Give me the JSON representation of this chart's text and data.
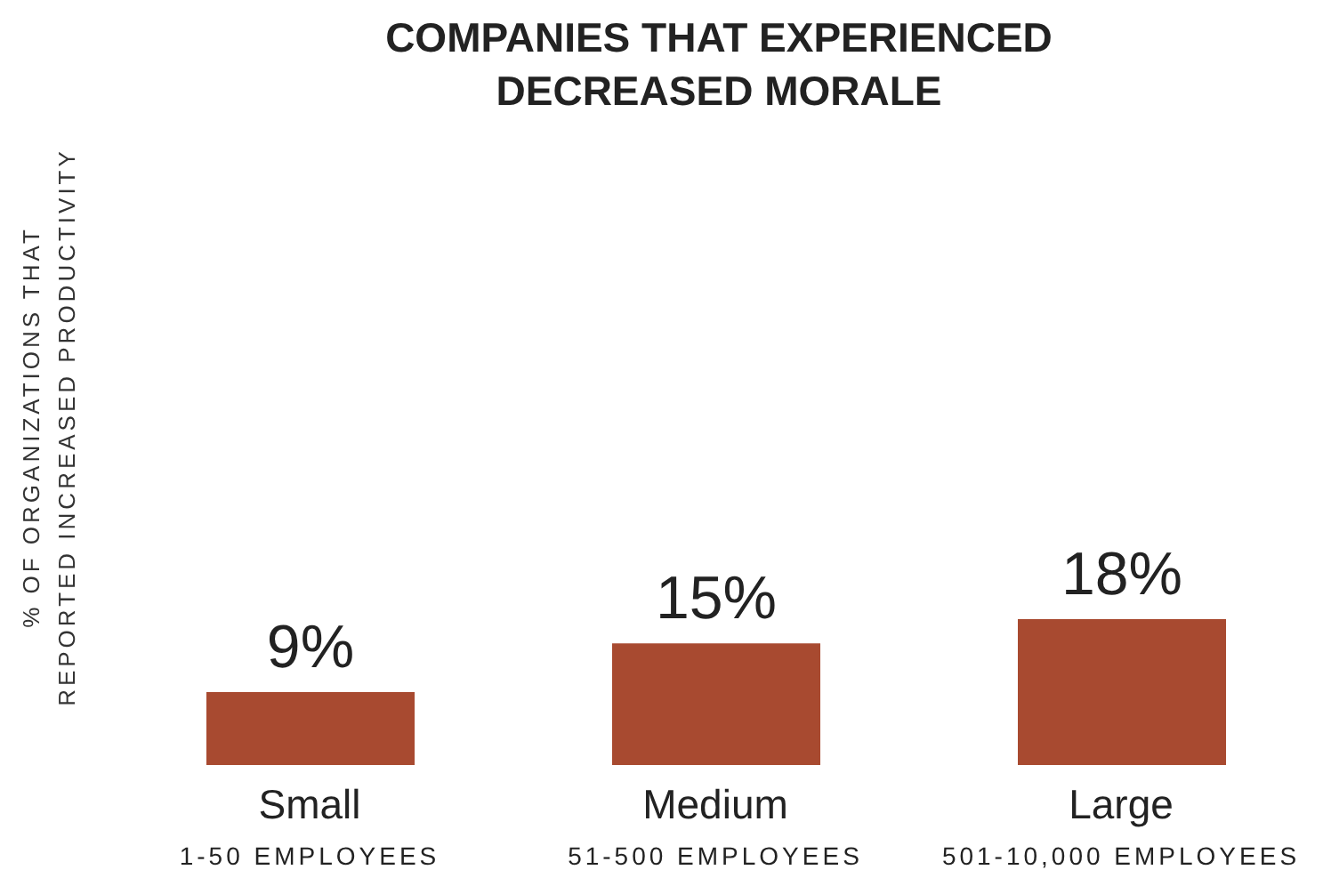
{
  "chart_data": {
    "type": "bar",
    "title": "COMPANIES THAT EXPERIENCED\nDECREASED MORALE",
    "ylabel": "% OF ORGANIZATIONS THAT\nREPORTED INCREASED PRODUCTIVITY",
    "categories": [
      "Small\n1-50 EMPLOYEES",
      "Medium\n51-500 EMPLOYEES",
      "Large\n501-10,000 EMPLOYEES"
    ],
    "values": [
      9,
      15,
      18
    ],
    "color": "#a84a30",
    "value_labels": [
      "9%",
      "15%",
      "18%"
    ]
  }
}
